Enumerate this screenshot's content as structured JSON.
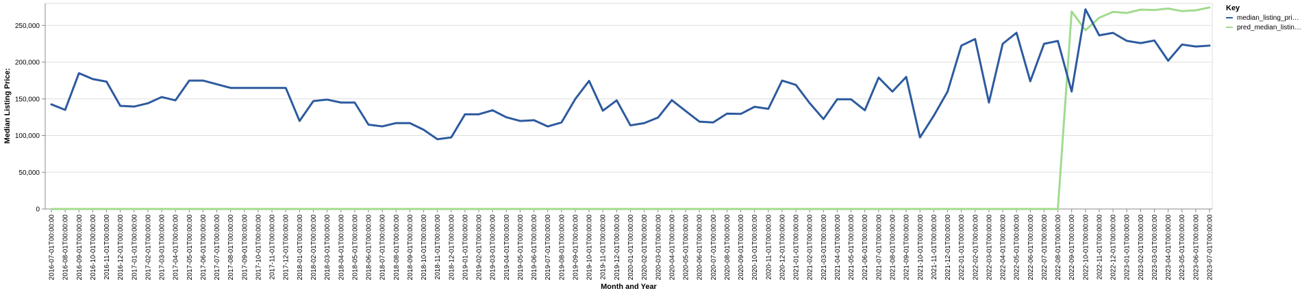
{
  "chart_data": {
    "type": "line",
    "xlabel": "Month and Year",
    "ylabel": "Median Listing Price:",
    "ylim": [
      0,
      280000
    ],
    "yticks": [
      0,
      50000,
      100000,
      150000,
      200000,
      250000
    ],
    "ytick_labels": [
      "0",
      "50,000",
      "100,000",
      "150,000",
      "200,000",
      "250,000"
    ],
    "grid": true,
    "legend": {
      "title": "Key",
      "position": "right"
    },
    "categories": [
      "2016-07-01T00:00:00",
      "2016-08-01T00:00:00",
      "2016-09-01T00:00:00",
      "2016-10-01T00:00:00",
      "2016-11-01T00:00:00",
      "2016-12-01T00:00:00",
      "2017-01-01T00:00:00",
      "2017-02-01T00:00:00",
      "2017-03-01T00:00:00",
      "2017-04-01T00:00:00",
      "2017-05-01T00:00:00",
      "2017-06-01T00:00:00",
      "2017-07-01T00:00:00",
      "2017-08-01T00:00:00",
      "2017-09-01T00:00:00",
      "2017-10-01T00:00:00",
      "2017-11-01T00:00:00",
      "2017-12-01T00:00:00",
      "2018-01-01T00:00:00",
      "2018-02-01T00:00:00",
      "2018-03-01T00:00:00",
      "2018-04-01T00:00:00",
      "2018-05-01T00:00:00",
      "2018-06-01T00:00:00",
      "2018-07-01T00:00:00",
      "2018-08-01T00:00:00",
      "2018-09-01T00:00:00",
      "2018-10-01T00:00:00",
      "2018-11-01T00:00:00",
      "2018-12-01T00:00:00",
      "2019-01-01T00:00:00",
      "2019-02-01T00:00:00",
      "2019-03-01T00:00:00",
      "2019-04-01T00:00:00",
      "2019-05-01T00:00:00",
      "2019-06-01T00:00:00",
      "2019-07-01T00:00:00",
      "2019-08-01T00:00:00",
      "2019-09-01T00:00:00",
      "2019-10-01T00:00:00",
      "2019-11-01T00:00:00",
      "2019-12-01T00:00:00",
      "2020-01-01T00:00:00",
      "2020-02-01T00:00:00",
      "2020-03-01T00:00:00",
      "2020-04-01T00:00:00",
      "2020-05-01T00:00:00",
      "2020-06-01T00:00:00",
      "2020-07-01T00:00:00",
      "2020-08-01T00:00:00",
      "2020-09-01T00:00:00",
      "2020-10-01T00:00:00",
      "2020-11-01T00:00:00",
      "2020-12-01T00:00:00",
      "2021-01-01T00:00:00",
      "2021-02-01T00:00:00",
      "2021-03-01T00:00:00",
      "2021-04-01T00:00:00",
      "2021-05-01T00:00:00",
      "2021-06-01T00:00:00",
      "2021-07-01T00:00:00",
      "2021-08-01T00:00:00",
      "2021-09-01T00:00:00",
      "2021-10-01T00:00:00",
      "2021-11-01T00:00:00",
      "2021-12-01T00:00:00",
      "2022-01-01T00:00:00",
      "2022-02-01T00:00:00",
      "2022-03-01T00:00:00",
      "2022-04-01T00:00:00",
      "2022-05-01T00:00:00",
      "2022-06-01T00:00:00",
      "2022-07-01T00:00:00",
      "2022-08-01T00:00:00",
      "2022-09-01T00:00:00",
      "2022-10-01T00:00:00",
      "2022-11-01T00:00:00",
      "2022-12-01T00:00:00",
      "2023-01-01T00:00:00",
      "2023-02-01T00:00:00",
      "2023-03-01T00:00:00",
      "2023-04-01T00:00:00",
      "2023-05-01T00:00:00",
      "2023-06-01T00:00:00",
      "2023-07-01T00:00:00"
    ],
    "series": [
      {
        "name": "median_listing_pri…",
        "color": "#2c5a9e",
        "values": [
          142500,
          135000,
          185000,
          177000,
          173500,
          140500,
          139500,
          144000,
          152500,
          148000,
          174900,
          174900,
          169900,
          164900,
          164900,
          164900,
          164900,
          164900,
          119900,
          147000,
          149000,
          145000,
          145000,
          114900,
          112500,
          117000,
          117000,
          107900,
          95000,
          97500,
          129000,
          129000,
          134500,
          124900,
          119900,
          120900,
          112400,
          117900,
          149900,
          174500,
          133900,
          148000,
          113900,
          117000,
          124500,
          148200,
          133500,
          119000,
          117900,
          129900,
          129500,
          139200,
          136400,
          174900,
          169000,
          144200,
          122500,
          149500,
          149400,
          134500,
          179000,
          159900,
          179900,
          97500,
          127000,
          159900,
          222500,
          231500,
          145000,
          225000,
          240000,
          174000,
          225000,
          228900,
          160000,
          272000,
          236500,
          239900,
          229000,
          225900,
          229500,
          202000,
          224000,
          221300,
          222500
        ]
      },
      {
        "name": "pred_median_listin…",
        "color": "#a1db8e",
        "values": [
          0,
          0,
          0,
          0,
          0,
          0,
          0,
          0,
          0,
          0,
          0,
          0,
          0,
          0,
          0,
          0,
          0,
          0,
          0,
          0,
          0,
          0,
          0,
          0,
          0,
          0,
          0,
          0,
          0,
          0,
          0,
          0,
          0,
          0,
          0,
          0,
          0,
          0,
          0,
          0,
          0,
          0,
          0,
          0,
          0,
          0,
          0,
          0,
          0,
          0,
          0,
          0,
          0,
          0,
          0,
          0,
          0,
          0,
          0,
          0,
          0,
          0,
          0,
          0,
          0,
          0,
          0,
          0,
          0,
          0,
          0,
          0,
          0,
          0,
          269000,
          243500,
          260500,
          268500,
          267000,
          271500,
          271000,
          273000,
          269500,
          270600,
          274500
        ]
      }
    ]
  }
}
